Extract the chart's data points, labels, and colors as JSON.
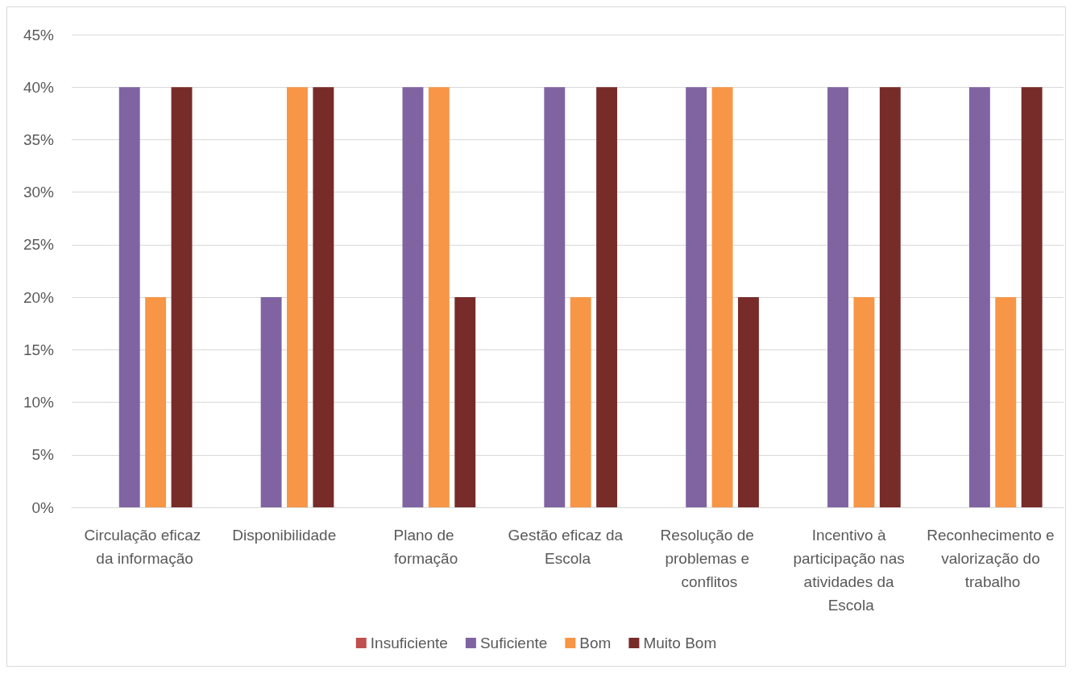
{
  "chart_data": {
    "type": "bar",
    "categories": [
      "Circulação eficaz da informação",
      "Disponibilidade",
      "Plano de formação",
      "Gestão eficaz da Escola",
      "Resolução de problemas e conflitos",
      "Incentivo à participação nas atividades da Escola",
      "Reconhecimento e valorização do trabalho"
    ],
    "series": [
      {
        "name": "Insuficiente",
        "color": "#c0504d",
        "values": [
          0,
          0,
          0,
          0,
          0,
          0,
          0
        ]
      },
      {
        "name": "Suficiente",
        "color": "#8064a2",
        "values": [
          40,
          20,
          40,
          40,
          40,
          40,
          40
        ]
      },
      {
        "name": "Bom",
        "color": "#f79646",
        "values": [
          20,
          40,
          40,
          20,
          40,
          20,
          20
        ]
      },
      {
        "name": "Muito Bom",
        "color": "#772c2a",
        "values": [
          40,
          40,
          20,
          40,
          20,
          40,
          40
        ]
      }
    ],
    "ylim": [
      0,
      45
    ],
    "yticks": [
      {
        "value": 0,
        "label": "0%"
      },
      {
        "value": 5,
        "label": "5%"
      },
      {
        "value": 10,
        "label": "10%"
      },
      {
        "value": 15,
        "label": "15%"
      },
      {
        "value": 20,
        "label": "20%"
      },
      {
        "value": 25,
        "label": "25%"
      },
      {
        "value": 30,
        "label": "30%"
      },
      {
        "value": 35,
        "label": "35%"
      },
      {
        "value": 40,
        "label": "40%"
      },
      {
        "value": 45,
        "label": "45%"
      }
    ],
    "grid": "y",
    "legend": "bottom"
  }
}
